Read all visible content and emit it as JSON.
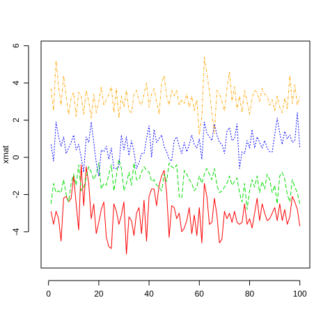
{
  "chart_data": {
    "type": "line",
    "title": "",
    "xlabel": "",
    "ylabel": "xmat",
    "xlim": [
      -2.96,
      103.96
    ],
    "ylim": [
      -5.95,
      6.25
    ],
    "x_ticks": [
      0,
      20,
      40,
      60,
      80,
      100
    ],
    "x_tick_labels": [
      "0",
      "20",
      "40",
      "60",
      "80",
      "100"
    ],
    "y_ticks": [
      -4,
      -2,
      0,
      2,
      4,
      6
    ],
    "y_tick_labels": [
      "-4",
      "-2",
      "0",
      "2",
      "4",
      "6"
    ],
    "grid": false,
    "legend": "none",
    "x_start": 1,
    "series": [
      {
        "color": "#ff0000",
        "dash": "solid",
        "values": [
          -2.9,
          -3.6,
          -2.9,
          -3.3,
          -4.5,
          -2.2,
          -2.1,
          -2.4,
          -2.2,
          -1.0,
          -2.5,
          -3.9,
          -0.4,
          -2.6,
          -0.5,
          -1.4,
          -3.3,
          -2.5,
          -4.1,
          -3.5,
          -2.8,
          -2.4,
          -4.3,
          -4.8,
          -4.9,
          -2.5,
          -2.9,
          -3.6,
          -3.1,
          -2.4,
          -5.2,
          -3.2,
          -3.4,
          -4.2,
          -3.0,
          -2.7,
          -4.1,
          -2.3,
          -4.5,
          -2.1,
          -1.7,
          -1.7,
          -2.6,
          -1.5,
          -1.0,
          -0.7,
          -1.9,
          -4.3,
          -2.6,
          -2.7,
          -3.3,
          -3.0,
          -4.0,
          -3.8,
          -3.4,
          -2.7,
          -4.1,
          -3.1,
          -4.2,
          -2.7,
          -4.6,
          -1.4,
          -2.1,
          -3.6,
          -3.5,
          -2.2,
          -3.1,
          -4.6,
          -4.4,
          -2.9,
          -3.3,
          -3.0,
          -3.5,
          -2.9,
          -3.5,
          -3.6,
          -3.5,
          -2.5,
          -3.6,
          -3.3,
          -3.8,
          -3.0,
          -2.2,
          -3.4,
          -2.5,
          -3.0,
          -3.4,
          -3.3,
          -3.0,
          -2.7,
          -3.4,
          -2.5,
          -3.4,
          -2.8,
          -3.6,
          -3.2,
          -2.1,
          -2.4,
          -2.8,
          -3.7
        ]
      },
      {
        "color": "#00dd00",
        "dash": "6,3",
        "values": [
          -2.5,
          -1.4,
          -1.9,
          -1.8,
          -1.9,
          -1.2,
          -2.0,
          -2.4,
          -1.4,
          -0.9,
          -1.5,
          -0.4,
          -1.8,
          -1.6,
          -1.1,
          -0.5,
          -0.8,
          -1.2,
          -0.9,
          -0.3,
          -1.7,
          -1.4,
          -1.5,
          -0.9,
          -0.4,
          -1.8,
          -1.0,
          -0.1,
          -0.6,
          -1.8,
          -1.4,
          -0.8,
          -1.5,
          -0.3,
          -1.2,
          -1.2,
          -0.8,
          -0.5,
          -0.7,
          -0.8,
          -1.3,
          -1.2,
          -1.5,
          -1.6,
          -1.8,
          -0.9,
          -1.3,
          -0.3,
          -0.5,
          -0.6,
          -0.4,
          -2.1,
          -2.2,
          -0.7,
          -0.9,
          -1.2,
          -1.4,
          -1.8,
          -1.6,
          -1.0,
          -1.4,
          -0.9,
          -0.6,
          -0.9,
          -1.2,
          -0.6,
          -1.5,
          -1.9,
          -1.8,
          -1.6,
          -1.4,
          -1.0,
          -1.5,
          -1.3,
          -1.1,
          -1.9,
          -2.4,
          -1.4,
          -2.8,
          -1.8,
          -1.2,
          -1.6,
          -1.0,
          -1.9,
          -1.3,
          -1.7,
          -0.9,
          -1.2,
          -1.9,
          -1.5,
          -2.5,
          -1.0,
          -0.8,
          -1.2,
          -2.0,
          -2.4,
          -1.2,
          -1.6,
          -1.9,
          -2.5
        ]
      },
      {
        "color": "#0000ff",
        "dash": "2,2",
        "values": [
          0.7,
          -0.2,
          1.9,
          1.1,
          0.6,
          1.1,
          0.2,
          0.5,
          0.8,
          1.2,
          0.4,
          0.7,
          0.0,
          -0.8,
          1.1,
          0.8,
          1.9,
          0.8,
          -0.3,
          -1.0,
          0.4,
          0.3,
          0.6,
          -0.1,
          0.5,
          -0.6,
          -0.6,
          -0.5,
          1.2,
          0.4,
          1.1,
          0.1,
          0.9,
          0.3,
          -0.6,
          -0.3,
          0.2,
          0.2,
          1.0,
          1.7,
          0.0,
          1.5,
          0.8,
          1.0,
          1.2,
          0.6,
          0.3,
          -0.1,
          -0.2,
          0.9,
          1.1,
          0.6,
          0.2,
          0.8,
          0.3,
          0.7,
          1.2,
          0.7,
          0.5,
          1.0,
          -0.1,
          1.9,
          1.3,
          1.1,
          0.9,
          1.8,
          1.2,
          0.8,
          0.7,
          0.2,
          1.4,
          1.6,
          0.9,
          1.0,
          1.8,
          -0.6,
          0.3,
          0.2,
          0.9,
          0.5,
          1.5,
          0.5,
          1.1,
          0.8,
          0.5,
          0.9,
          0.5,
          0.3,
          0.3,
          1.2,
          2.1,
          1.3,
          0.7,
          1.4,
          1.0,
          1.2,
          0.8,
          0.9,
          2.4,
          0.5
        ]
      },
      {
        "color": "#ffa500",
        "dash": "4,2,1,2",
        "values": [
          3.7,
          2.5,
          5.2,
          3.8,
          2.8,
          4.4,
          3.3,
          2.3,
          3.2,
          3.5,
          2.2,
          3.5,
          3.3,
          2.3,
          3.6,
          3.0,
          2.1,
          3.4,
          2.4,
          3.0,
          3.8,
          2.8,
          3.1,
          3.4,
          3.8,
          2.4,
          3.7,
          2.1,
          3.3,
          2.7,
          3.6,
          2.5,
          2.4,
          3.4,
          3.6,
          3.0,
          2.8,
          3.4,
          4.0,
          2.7,
          3.4,
          3.7,
          3.0,
          2.3,
          4.0,
          4.4,
          3.3,
          2.8,
          3.6,
          3.3,
          3.6,
          2.8,
          3.1,
          2.9,
          3.4,
          2.7,
          3.3,
          2.5,
          3.1,
          1.2,
          2.2,
          5.4,
          4.5,
          3.6,
          2.4,
          1.3,
          3.6,
          3.4,
          3.0,
          2.5,
          3.7,
          4.6,
          3.0,
          3.8,
          2.6,
          3.3,
          2.4,
          3.6,
          3.0,
          2.3,
          3.2,
          3.6,
          3.5,
          3.0,
          3.7,
          3.4,
          3.3,
          2.8,
          3.1,
          2.5,
          3.3,
          2.7,
          2.4,
          3.2,
          2.6,
          4.4,
          2.9,
          3.9,
          2.8,
          3.3
        ]
      }
    ]
  }
}
